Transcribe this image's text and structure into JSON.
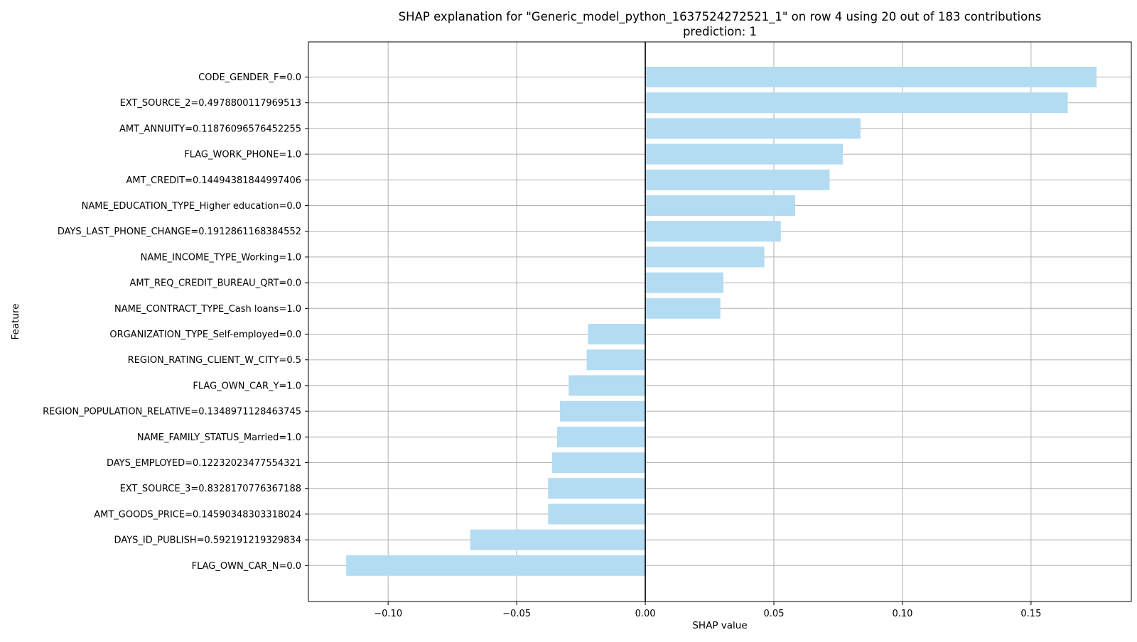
{
  "chart_data": {
    "type": "bar",
    "orientation": "horizontal",
    "title": "SHAP explanation for \"Generic_model_python_1637524272521_1\" on row 4 using 20 out of 183 contributions",
    "subtitle": "prediction: 1",
    "xlabel": "SHAP value",
    "ylabel": "Feature",
    "xlim": [
      -0.131,
      0.189
    ],
    "xticks": [
      -0.1,
      -0.05,
      0.0,
      0.05,
      0.1,
      0.15
    ],
    "xtick_labels": [
      "−0.10",
      "−0.05",
      "0.00",
      "0.05",
      "0.10",
      "0.15"
    ],
    "grid": true,
    "bar_color": "#b3dcf2",
    "zero_line_color": "#000000",
    "categories": [
      "CODE_GENDER_F=0.0",
      "EXT_SOURCE_2=0.4978800117969513",
      "AMT_ANNUITY=0.11876096576452255",
      "FLAG_WORK_PHONE=1.0",
      "AMT_CREDIT=0.14494381844997406",
      "NAME_EDUCATION_TYPE_Higher education=0.0",
      "DAYS_LAST_PHONE_CHANGE=0.1912861168384552",
      "NAME_INCOME_TYPE_Working=1.0",
      "AMT_REQ_CREDIT_BUREAU_QRT=0.0",
      "NAME_CONTRACT_TYPE_Cash loans=1.0",
      "ORGANIZATION_TYPE_Self-employed=0.0",
      "REGION_RATING_CLIENT_W_CITY=0.5",
      "FLAG_OWN_CAR_Y=1.0",
      "REGION_POPULATION_RELATIVE=0.1348971128463745",
      "NAME_FAMILY_STATUS_Married=1.0",
      "DAYS_EMPLOYED=0.12232023477554321",
      "EXT_SOURCE_3=0.8328170776367188",
      "AMT_GOODS_PRICE=0.14590348303318024",
      "DAYS_ID_PUBLISH=0.592191219329834",
      "FLAG_OWN_CAR_N=0.0"
    ],
    "values": [
      0.1755,
      0.1643,
      0.0837,
      0.0768,
      0.0717,
      0.0583,
      0.0527,
      0.0463,
      0.0304,
      0.0292,
      -0.0223,
      -0.0228,
      -0.0298,
      -0.0332,
      -0.0343,
      -0.0363,
      -0.0378,
      -0.0378,
      -0.0681,
      -0.1163
    ]
  }
}
